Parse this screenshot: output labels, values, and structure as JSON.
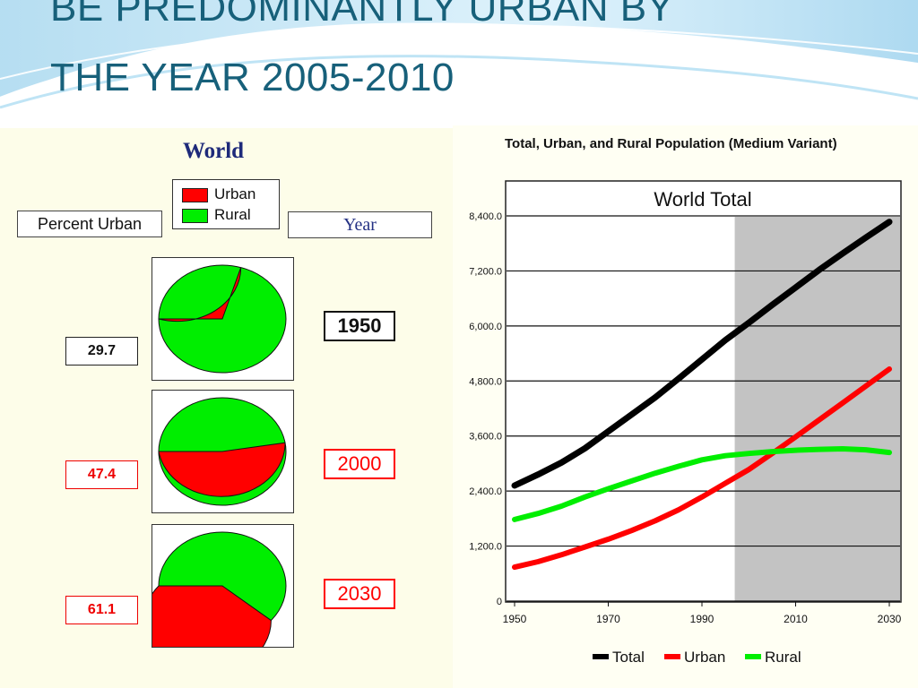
{
  "slide": {
    "title_line1": "BE PREDOMINANTLY URBAN BY",
    "title_line2": "THE YEAR 2005-2010"
  },
  "left_panel": {
    "title": "World",
    "legend": [
      {
        "label": "Urban",
        "color": "#ff0000"
      },
      {
        "label": "Rural",
        "color": "#00ee00"
      }
    ],
    "percent_urban_header": "Percent Urban",
    "year_header": "Year",
    "pies": [
      {
        "year": "1950",
        "percent_urban": "29.7",
        "urban_share": 0.297,
        "highlight_color": "#111111"
      },
      {
        "year": "2000",
        "percent_urban": "47.4",
        "urban_share": 0.474,
        "highlight_color": "#ff0000"
      },
      {
        "year": "2030",
        "percent_urban": "61.1",
        "urban_share": 0.611,
        "highlight_color": "#ff0000"
      }
    ]
  },
  "chart_data": {
    "type": "line",
    "title": "Total, Urban, and Rural Population (Medium Variant)",
    "subtitle": "World Total",
    "xlim": [
      1950,
      2030
    ],
    "ylim": [
      0,
      8400
    ],
    "x_ticks": [
      "1950",
      "1970",
      "1990",
      "2010",
      "2030"
    ],
    "x_tick_values": [
      1950,
      1970,
      1990,
      2010,
      2030
    ],
    "y_ticks": [
      "0",
      "1,200.0",
      "2,400.0",
      "3,600.0",
      "4,800.0",
      "6,000.0",
      "7,200.0",
      "8,400.0"
    ],
    "y_tick_values": [
      0,
      1200,
      2400,
      3600,
      4800,
      6000,
      7200,
      8400
    ],
    "projection_shading_start": 1997,
    "grid": "horizontal",
    "legend_position": "bottom",
    "x": [
      1950,
      1955,
      1960,
      1965,
      1970,
      1975,
      1980,
      1985,
      1990,
      1995,
      2000,
      2005,
      2010,
      2015,
      2020,
      2025,
      2030
    ],
    "series": [
      {
        "name": "Total",
        "color": "#000000",
        "values": [
          2520,
          2760,
          3020,
          3330,
          3700,
          4070,
          4440,
          4850,
          5270,
          5690,
          6070,
          6460,
          6840,
          7220,
          7580,
          7930,
          8270
        ]
      },
      {
        "name": "Urban",
        "color": "#ff0000",
        "values": [
          740,
          860,
          1010,
          1180,
          1350,
          1540,
          1750,
          1990,
          2270,
          2570,
          2870,
          3220,
          3580,
          3950,
          4320,
          4690,
          5060
        ]
      },
      {
        "name": "Rural",
        "color": "#00ee00",
        "values": [
          1780,
          1910,
          2070,
          2270,
          2450,
          2620,
          2790,
          2940,
          3080,
          3170,
          3220,
          3260,
          3290,
          3310,
          3320,
          3300,
          3240
        ]
      }
    ]
  }
}
